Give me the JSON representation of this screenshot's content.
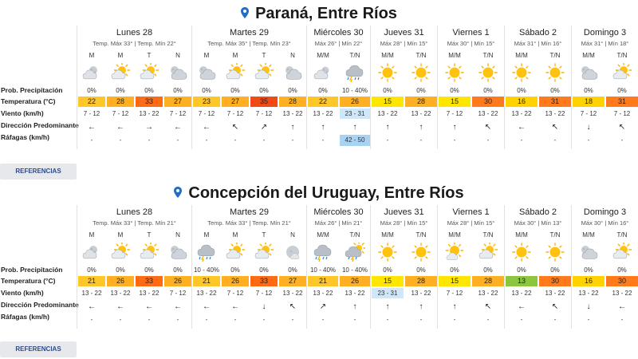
{
  "row_labels": {
    "precip": "Prob. Precipitación",
    "temp": "Temperatura (°C)",
    "wind": "Viento (km/h)",
    "dir": "Dirección Predominante",
    "gust": "Ráfagas (km/h)"
  },
  "refs_label": "REFERENCIAS",
  "colors": {
    "t13": "#8cc63f",
    "t15": "#ffe600",
    "t16": "#ffd200",
    "t18": "#ffd200",
    "t21": "#ffc62a",
    "t22": "#ffc62a",
    "t23": "#ffc62a",
    "t26": "#ffb022",
    "t27": "#ffb022",
    "t28": "#ffb022",
    "t30": "#ff7a1a",
    "t31": "#ff7a1a",
    "t33": "#ff6a14",
    "t35": "#f24a14",
    "highlight": "#cfe7f8",
    "gust_hl": "#a8d2f2"
  },
  "locations": [
    {
      "title": "Paraná, Entre Ríos",
      "days": [
        {
          "name": "Lunes 28",
          "sub": "Temp. Máx 33° | Temp. Mín 22°",
          "width": 144,
          "periods": [
            {
              "label": "M",
              "icon": "partly-cloudy-night",
              "prob": "0%",
              "temp": "22",
              "wind": "7 - 12",
              "dir": "←",
              "gust": "-"
            },
            {
              "label": "M",
              "icon": "partly-cloudy-day",
              "prob": "0%",
              "temp": "28",
              "wind": "7 - 12",
              "dir": "←",
              "gust": "-"
            },
            {
              "label": "T",
              "icon": "partly-cloudy-day",
              "prob": "0%",
              "temp": "33",
              "wind": "13 - 22",
              "dir": "→",
              "gust": "-"
            },
            {
              "label": "N",
              "icon": "cloudy-night",
              "prob": "0%",
              "temp": "27",
              "wind": "7 - 12",
              "dir": "←",
              "gust": "-"
            }
          ]
        },
        {
          "name": "Martes 29",
          "sub": "Temp. Máx 35° | Temp. Mín 23°",
          "width": 144,
          "periods": [
            {
              "label": "M",
              "icon": "cloudy-night",
              "prob": "0%",
              "temp": "23",
              "wind": "7 - 12",
              "dir": "←",
              "gust": "-"
            },
            {
              "label": "M",
              "icon": "partly-cloudy-day",
              "prob": "0%",
              "temp": "27",
              "wind": "7 - 12",
              "dir": "↖",
              "gust": "-"
            },
            {
              "label": "T",
              "icon": "partly-cloudy-day",
              "prob": "0%",
              "temp": "35",
              "wind": "7 - 12",
              "dir": "↗",
              "gust": "-"
            },
            {
              "label": "N",
              "icon": "cloudy-night",
              "prob": "0%",
              "temp": "28",
              "wind": "13 - 22",
              "dir": "↑",
              "gust": "-"
            }
          ]
        },
        {
          "name": "Miércoles 30",
          "sub": "Máx 26° | Mín 22°",
          "width": 80,
          "periods": [
            {
              "label": "M/M",
              "icon": "cloudy-night-small",
              "prob": "0%",
              "temp": "22",
              "wind": "13 - 22",
              "dir": "↑",
              "gust": "-"
            },
            {
              "label": "T/N",
              "icon": "storm",
              "prob": "10 - 40%",
              "temp": "26",
              "wind": "23 - 31",
              "dir": "↑",
              "gust": "42 - 50",
              "hl": true
            }
          ]
        },
        {
          "name": "Jueves 31",
          "sub": "Máx 28° | Mín 15°",
          "width": 84,
          "periods": [
            {
              "label": "M/M",
              "icon": "sun",
              "prob": "0%",
              "temp": "15",
              "wind": "13 - 22",
              "dir": "↑",
              "gust": "-"
            },
            {
              "label": "T/N",
              "icon": "sun",
              "prob": "0%",
              "temp": "28",
              "wind": "13 - 22",
              "dir": "↑",
              "gust": "-"
            }
          ]
        },
        {
          "name": "Viernes 1",
          "sub": "Máx 30° | Mín 15°",
          "width": 84,
          "periods": [
            {
              "label": "M/M",
              "icon": "sun",
              "prob": "0%",
              "temp": "15",
              "wind": "7 - 12",
              "dir": "↑",
              "gust": "-"
            },
            {
              "label": "T/N",
              "icon": "sun",
              "prob": "0%",
              "temp": "30",
              "wind": "13 - 22",
              "dir": "↖",
              "gust": "-"
            }
          ]
        },
        {
          "name": "Sábado 2",
          "sub": "Máx 31° | Mín 16°",
          "width": 84,
          "periods": [
            {
              "label": "M/M",
              "icon": "sun",
              "prob": "0%",
              "temp": "16",
              "wind": "13 - 22",
              "dir": "←",
              "gust": "-"
            },
            {
              "label": "T/N",
              "icon": "sun",
              "prob": "0%",
              "temp": "31",
              "wind": "13 - 22",
              "dir": "↖",
              "gust": "-"
            }
          ]
        },
        {
          "name": "Domingo 3",
          "sub": "Máx 31° | Mín 18°",
          "width": 84,
          "periods": [
            {
              "label": "M/M",
              "icon": "cloudy-night",
              "prob": "0%",
              "temp": "18",
              "wind": "7 - 12",
              "dir": "↓",
              "gust": "-"
            },
            {
              "label": "T/N",
              "icon": "partly-cloudy-day",
              "prob": "0%",
              "temp": "31",
              "wind": "7 - 12",
              "dir": "↖",
              "gust": "-"
            }
          ]
        }
      ]
    },
    {
      "title": "Concepción del Uruguay, Entre Ríos",
      "days": [
        {
          "name": "Lunes 28",
          "sub": "Temp. Máx 33° | Temp. Mín 21°",
          "width": 144,
          "periods": [
            {
              "label": "M",
              "icon": "partly-cloudy-night",
              "prob": "0%",
              "temp": "21",
              "wind": "13 - 22",
              "dir": "←",
              "gust": "-"
            },
            {
              "label": "M",
              "icon": "partly-cloudy-day",
              "prob": "0%",
              "temp": "26",
              "wind": "13 - 22",
              "dir": "←",
              "gust": "-"
            },
            {
              "label": "T",
              "icon": "partly-cloudy-day",
              "prob": "0%",
              "temp": "33",
              "wind": "13 - 22",
              "dir": "←",
              "gust": "-"
            },
            {
              "label": "N",
              "icon": "cloudy-night",
              "prob": "0%",
              "temp": "26",
              "wind": "7 - 12",
              "dir": "←",
              "gust": "-"
            }
          ]
        },
        {
          "name": "Martes 29",
          "sub": "Temp. Máx 33° | Temp. Mín 21°",
          "width": 144,
          "periods": [
            {
              "label": "M",
              "icon": "storm",
              "prob": "10 - 40%",
              "temp": "21",
              "wind": "13 - 22",
              "dir": "←",
              "gust": "-"
            },
            {
              "label": "M",
              "icon": "partly-cloudy-day",
              "prob": "0%",
              "temp": "26",
              "wind": "7 - 12",
              "dir": "←",
              "gust": "-"
            },
            {
              "label": "T",
              "icon": "partly-cloudy-day",
              "prob": "0%",
              "temp": "33",
              "wind": "7 - 12",
              "dir": "↓",
              "gust": "-"
            },
            {
              "label": "N",
              "icon": "moon-cloudy",
              "prob": "0%",
              "temp": "27",
              "wind": "13 - 22",
              "dir": "↖",
              "gust": "-"
            }
          ]
        },
        {
          "name": "Miércoles 30",
          "sub": "Máx 26° | Mín 21°",
          "width": 80,
          "periods": [
            {
              "label": "M/M",
              "icon": "storm",
              "prob": "10 - 40%",
              "temp": "21",
              "wind": "13 - 22",
              "dir": "↗",
              "gust": "-"
            },
            {
              "label": "T/N",
              "icon": "storm-sun",
              "prob": "10 - 40%",
              "temp": "26",
              "wind": "13 - 22",
              "dir": "↑",
              "gust": "-"
            }
          ]
        },
        {
          "name": "Jueves 31",
          "sub": "Máx 28° | Mín 15°",
          "width": 84,
          "periods": [
            {
              "label": "M/M",
              "icon": "sun",
              "prob": "0%",
              "temp": "15",
              "wind": "23 - 31",
              "dir": "↑",
              "gust": "-",
              "hl": true
            },
            {
              "label": "T/N",
              "icon": "sun",
              "prob": "0%",
              "temp": "28",
              "wind": "13 - 22",
              "dir": "↑",
              "gust": "-"
            }
          ]
        },
        {
          "name": "Viernes 1",
          "sub": "Máx 28° | Mín 15°",
          "width": 84,
          "periods": [
            {
              "label": "M/M",
              "icon": "sun-cloudy",
              "prob": "0%",
              "temp": "15",
              "wind": "7 - 12",
              "dir": "↑",
              "gust": "-"
            },
            {
              "label": "T/N",
              "icon": "partly-cloudy-day",
              "prob": "0%",
              "temp": "28",
              "wind": "13 - 22",
              "dir": "↖",
              "gust": "-"
            }
          ]
        },
        {
          "name": "Sábado 2",
          "sub": "Máx 30° | Mín 13°",
          "width": 84,
          "periods": [
            {
              "label": "M/M",
              "icon": "sun",
              "prob": "0%",
              "temp": "13",
              "wind": "13 - 22",
              "dir": "←",
              "gust": "-"
            },
            {
              "label": "T/N",
              "icon": "sun",
              "prob": "0%",
              "temp": "30",
              "wind": "13 - 22",
              "dir": "↖",
              "gust": "-"
            }
          ]
        },
        {
          "name": "Domingo 3",
          "sub": "Máx 30° | Mín 16°",
          "width": 84,
          "periods": [
            {
              "label": "M/M",
              "icon": "cloudy-night",
              "prob": "0%",
              "temp": "16",
              "wind": "13 - 22",
              "dir": "↓",
              "gust": "-"
            },
            {
              "label": "T/N",
              "icon": "partly-cloudy-day",
              "prob": "0%",
              "temp": "30",
              "wind": "13 - 22",
              "dir": "←",
              "gust": "-"
            }
          ]
        }
      ]
    }
  ]
}
